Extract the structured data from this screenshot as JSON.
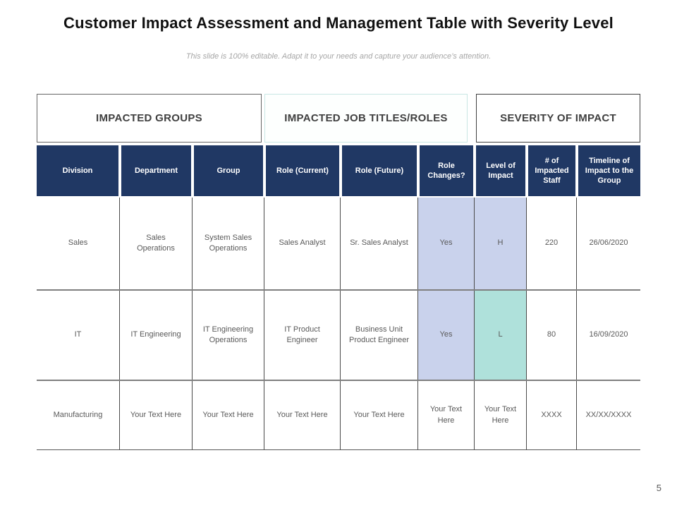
{
  "slide": {
    "title": "Customer Impact Assessment and Management Table with Severity Level",
    "subtitle": "This slide is 100% editable. Adapt it to your needs and capture your audience’s attention.",
    "page_number": "5"
  },
  "group_headers": [
    {
      "label": "IMPACTED GROUPS"
    },
    {
      "label": "IMPACTED JOB TITLES/ROLES"
    },
    {
      "label": "SEVERITY OF IMPACT"
    }
  ],
  "table": {
    "columns": [
      "Division",
      "Department",
      "Group",
      "Role (Current)",
      "Role (Future)",
      "Role Changes?",
      "Level of Impact",
      "# of Impacted Staff",
      "Timeline of Impact to the Group"
    ],
    "rows": [
      {
        "cells": [
          "Sales",
          "Sales Operations",
          "System Sales Operations",
          "Sales Analyst",
          "Sr. Sales Analyst",
          "Yes",
          "H",
          "220",
          "26/06/2020"
        ],
        "cell_highlights": {
          "5": "lavender",
          "6": "lavender"
        }
      },
      {
        "cells": [
          "IT",
          "IT Engineering",
          "IT Engineering Operations",
          "IT Product Engineer",
          "Business Unit Product Engineer",
          "Yes",
          "L",
          "80",
          "16/09/2020"
        ],
        "cell_highlights": {
          "5": "lavender",
          "6": "teal"
        }
      },
      {
        "cells": [
          "Manufacturing",
          "Your Text Here",
          "Your Text Here",
          "Your Text Here",
          "Your Text Here",
          "Your Text Here",
          "Your Text Here",
          "XXXX",
          "XX/XX/XXXX"
        ],
        "cell_highlights": {}
      }
    ]
  },
  "colors": {
    "header_bg": "#203864",
    "header_text": "#ffffff",
    "highlight_lavender": "#c9d2ec",
    "highlight_teal": "#afe1db",
    "row_divider": "#7f7f7f",
    "cell_text": "#595959",
    "accent_border_teal": "#c9e7e4"
  }
}
